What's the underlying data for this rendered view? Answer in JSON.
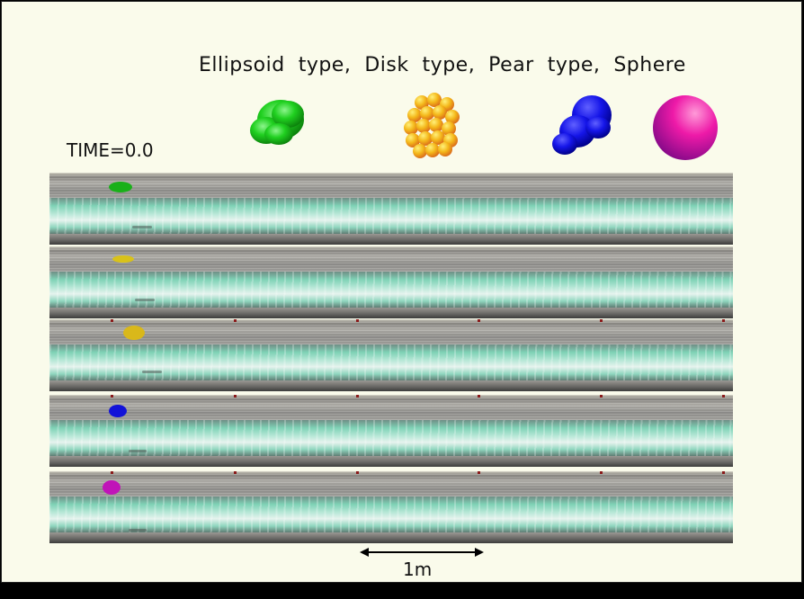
{
  "header": {
    "title": "Ellipsoid  type,  Disk  type,  Pear  type,  Sphere"
  },
  "time": {
    "label": "TIME=0.0"
  },
  "legend": [
    {
      "name": "ellipsoid",
      "icon": "green-ellipsoid-icon",
      "color": "#19c419"
    },
    {
      "name": "disk",
      "icon": "yellow-disk-icon",
      "color": "#f4c21a"
    },
    {
      "name": "pear",
      "icon": "blue-pear-icon",
      "color": "#1010e0"
    },
    {
      "name": "sphere",
      "icon": "magenta-sphere-icon",
      "color": "#e01aa8"
    }
  ],
  "lanes": [
    {
      "particle": "ellipsoid",
      "color": "#19b019"
    },
    {
      "particle": "disk",
      "color": "#d9c21a"
    },
    {
      "particle": "disk",
      "color": "#d9b81a"
    },
    {
      "particle": "pear",
      "color": "#1212d8"
    },
    {
      "particle": "sphere",
      "color": "#c014b8"
    }
  ],
  "scale": {
    "label": "1m"
  }
}
